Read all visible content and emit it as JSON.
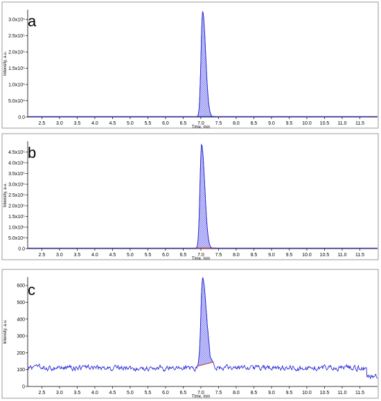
{
  "chart_data": [
    {
      "panel_label": "a",
      "type": "line",
      "xlabel": "Time, min",
      "ylabel": "Intensity, a.u.",
      "xlim": [
        2.1,
        12.0
      ],
      "ylim": [
        0,
        3.3
      ],
      "xticks": [
        2.5,
        3.0,
        3.5,
        4.0,
        4.5,
        5.0,
        5.5,
        6.0,
        6.5,
        7.0,
        7.5,
        8.0,
        8.5,
        9.0,
        9.5,
        10.0,
        10.5,
        11.0,
        11.5
      ],
      "xtick_labels": [
        "2.5",
        "3.0",
        "3.5",
        "4.0",
        "4.5",
        "5.0",
        "5.5",
        "6.0",
        "6.5",
        "7.0",
        "7.5",
        "8.0",
        "8.5",
        "9.0",
        "9.5",
        "10.0",
        "10.5",
        "11.0",
        "11.5"
      ],
      "yticks": [
        0,
        0.5,
        1.0,
        1.5,
        2.0,
        2.5,
        3.0
      ],
      "ytick_labels": [
        "0.0",
        "5.0x10⁴",
        "1.0x10⁵",
        "1.5x10⁵",
        "2.0x10⁵",
        "2.5x10⁵",
        "3.0x10⁵"
      ],
      "y_unit_note": "values in units of 1e5",
      "peak": {
        "rt": 7.05,
        "height": 3.25,
        "start": 6.88,
        "end": 7.42,
        "sigma_left": 0.045,
        "sigma_right": 0.085
      },
      "noise": 0.004,
      "has_integration_baseline": false
    },
    {
      "panel_label": "b",
      "type": "line",
      "xlabel": "Time, min",
      "ylabel": "Intensity, a.u.",
      "xlim": [
        2.1,
        12.0
      ],
      "ylim": [
        0,
        5.0
      ],
      "xticks": [
        2.5,
        3.0,
        3.5,
        4.0,
        4.5,
        5.0,
        5.5,
        6.0,
        6.5,
        7.0,
        7.5,
        8.0,
        8.5,
        9.0,
        9.5,
        10.0,
        10.5,
        11.0,
        11.5
      ],
      "xtick_labels": [
        "2.5",
        "3.0",
        "3.5",
        "4.0",
        "4.5",
        "5.0",
        "5.5",
        "6.0",
        "6.5",
        "7.0",
        "7.5",
        "8.0",
        "8.5",
        "9.0",
        "9.5",
        "10.0",
        "10.5",
        "11.0",
        "11.5"
      ],
      "yticks": [
        0,
        0.5,
        1.0,
        1.5,
        2.0,
        2.5,
        3.0,
        3.5,
        4.0,
        4.5
      ],
      "ytick_labels": [
        "0.0",
        "5.0x10⁴",
        "1.0x10⁵",
        "1.5x10⁵",
        "2.0x10⁵",
        "2.5x10⁵",
        "3.0x10⁵",
        "3.5x10⁵",
        "4.0x10⁵",
        "4.5x10⁵"
      ],
      "y_unit_note": "values in units of 1e5",
      "peak": {
        "rt": 7.02,
        "height": 4.85,
        "start": 6.82,
        "end": 7.45,
        "sigma_left": 0.045,
        "sigma_right": 0.09
      },
      "noise": 0.008,
      "has_integration_baseline": true
    },
    {
      "panel_label": "c",
      "type": "line",
      "xlabel": "Time, min",
      "ylabel": "Intensity, a.u.",
      "xlim": [
        2.1,
        12.0
      ],
      "ylim": [
        0,
        650
      ],
      "xticks": [
        2.5,
        3.0,
        3.5,
        4.0,
        4.5,
        5.0,
        5.5,
        6.0,
        6.5,
        7.0,
        7.5,
        8.0,
        8.5,
        9.0,
        9.5,
        10.0,
        10.5,
        11.0,
        11.5
      ],
      "xtick_labels": [
        "2.5",
        "3.0",
        "3.5",
        "4.0",
        "4.5",
        "5.0",
        "5.5",
        "6.0",
        "6.5",
        "7.0",
        "7.5",
        "8.0",
        "8.5",
        "9.0",
        "9.5",
        "10.0",
        "10.5",
        "11.0",
        "11.5"
      ],
      "yticks": [
        0,
        100,
        200,
        300,
        400,
        500,
        600
      ],
      "ytick_labels": [
        "0",
        "100",
        "200",
        "300",
        "400",
        "500",
        "600"
      ],
      "peak": {
        "rt": 7.05,
        "height": 530,
        "start": 6.9,
        "end": 7.35,
        "sigma_left": 0.05,
        "sigma_right": 0.11
      },
      "baseline_level": 110,
      "noise": 18,
      "has_integration_baseline": true
    }
  ],
  "colors": {
    "trace": "#2a2ad6",
    "fill": "#6d6df0",
    "baseline": "#e0302a",
    "frame": "#9a9a9a"
  }
}
